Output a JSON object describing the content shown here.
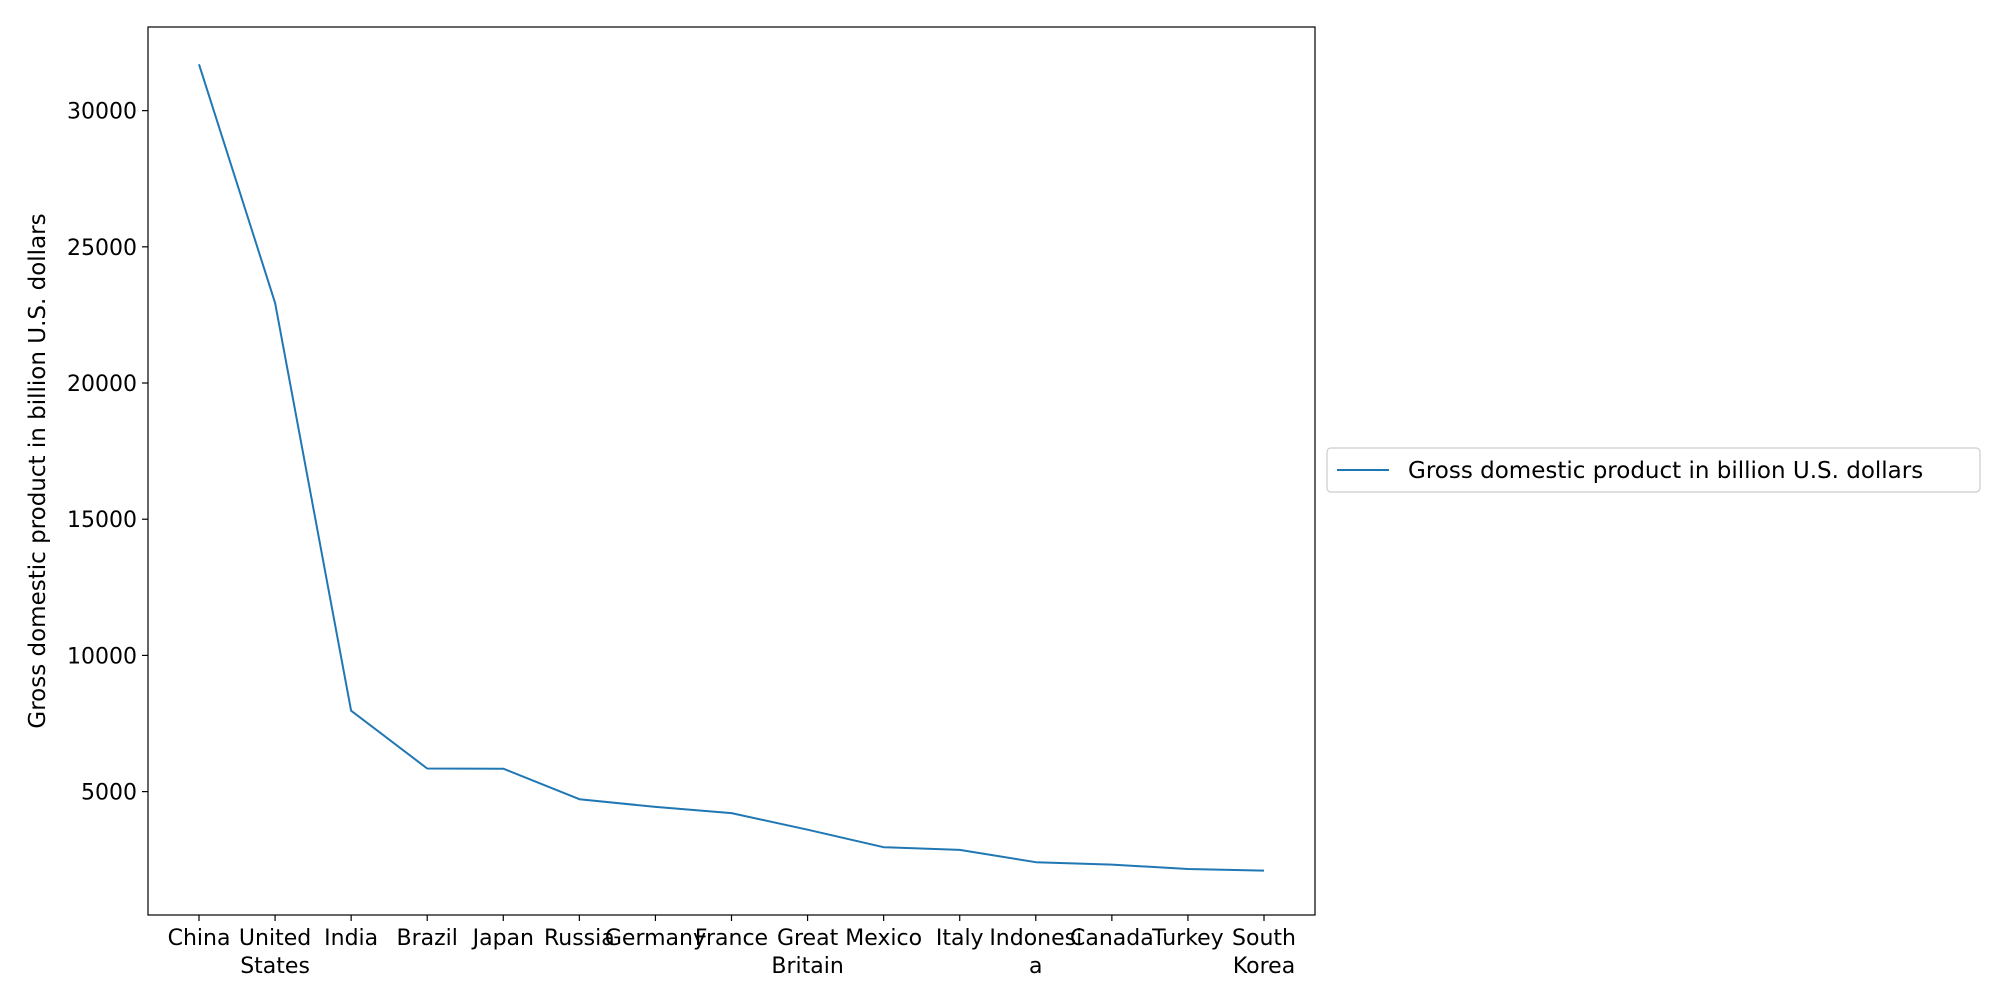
{
  "chart_data": {
    "type": "line",
    "categories": [
      [
        "China"
      ],
      [
        "United",
        "States"
      ],
      [
        "India"
      ],
      [
        "Brazil"
      ],
      [
        "Japan"
      ],
      [
        "Russia"
      ],
      [
        "Germany"
      ],
      [
        "France"
      ],
      [
        "Great",
        "Britain"
      ],
      [
        "Mexico"
      ],
      [
        "Italy"
      ],
      [
        "Indonesi",
        "a"
      ],
      [
        "Canada"
      ],
      [
        "Turkey"
      ],
      [
        "South",
        "Korea"
      ]
    ],
    "series": [
      {
        "name": "Gross domestic product in billion U.S. dollars",
        "values": [
          31700,
          22940,
          7970,
          5850,
          5840,
          4720,
          4440,
          4210,
          3600,
          2960,
          2860,
          2410,
          2320,
          2160,
          2100
        ],
        "color": "#1f77b4"
      }
    ],
    "title": "",
    "xlabel": "",
    "ylabel": "Gross domestic product in billion U.S. dollars",
    "ylim": [
      470,
      33070
    ],
    "yticks": [
      5000,
      10000,
      15000,
      20000,
      25000,
      30000
    ],
    "grid": false,
    "legend_position": "right"
  }
}
